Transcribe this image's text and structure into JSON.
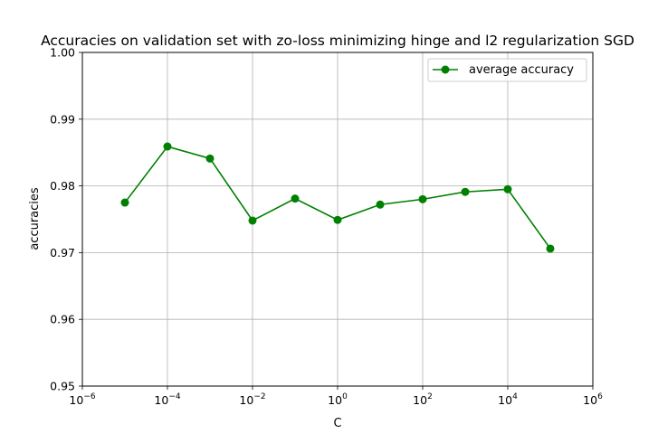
{
  "chart_data": {
    "type": "line",
    "title": "Accuracies on validation set with zo-loss minimizing hinge and l2 regularization SGD",
    "xlabel": "C",
    "ylabel": "accuracies",
    "xscale": "log",
    "xlim": [
      1e-06,
      1000000.0
    ],
    "ylim": [
      0.95,
      1.0
    ],
    "x_ticks": [
      {
        "base": "10",
        "exp": "−6",
        "value": 1e-06
      },
      {
        "base": "10",
        "exp": "−4",
        "value": 0.0001
      },
      {
        "base": "10",
        "exp": "−2",
        "value": 0.01
      },
      {
        "base": "10",
        "exp": "0",
        "value": 1
      },
      {
        "base": "10",
        "exp": "2",
        "value": 100
      },
      {
        "base": "10",
        "exp": "4",
        "value": 10000
      },
      {
        "base": "10",
        "exp": "6",
        "value": 1000000
      }
    ],
    "y_ticks": [
      "0.95",
      "0.96",
      "0.97",
      "0.98",
      "0.99",
      "1.00"
    ],
    "grid": true,
    "legend_position": "top-right",
    "series": [
      {
        "name": "average accuracy",
        "color": "#008000",
        "marker": "circle",
        "x": [
          1e-05,
          0.0001,
          0.001,
          0.01,
          0.1,
          1,
          10,
          100,
          1000,
          10000,
          100000
        ],
        "y": [
          0.9775,
          0.9859,
          0.9841,
          0.9748,
          0.9781,
          0.9749,
          0.9772,
          0.978,
          0.9791,
          0.9795,
          0.9706
        ]
      }
    ]
  }
}
